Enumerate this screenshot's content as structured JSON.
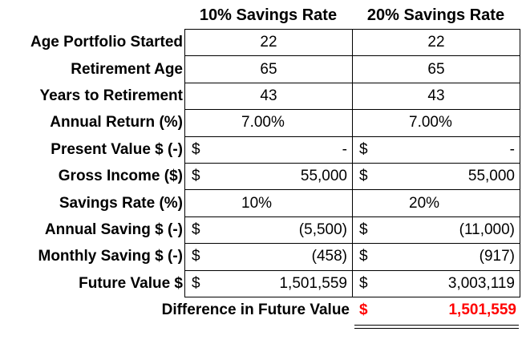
{
  "headers": {
    "col1": "10% Savings Rate",
    "col2": "20% Savings Rate"
  },
  "rows": [
    {
      "label": "Age Portfolio Started",
      "kind": "center",
      "c1": "22",
      "c2": "22"
    },
    {
      "label": "Retirement Age",
      "kind": "center",
      "c1": "65",
      "c2": "65"
    },
    {
      "label": "Years to Retirement",
      "kind": "center",
      "c1": "43",
      "c2": "43"
    },
    {
      "label": "Annual Return (%)",
      "kind": "pct",
      "c1": "7.00%",
      "c2": "7.00%"
    },
    {
      "label": "Present Value $ (-)",
      "kind": "acct",
      "c1_cur": "$",
      "c1": "-",
      "c2_cur": "$",
      "c2": "-"
    },
    {
      "label": "Gross Income ($)",
      "kind": "acct",
      "c1_cur": "$",
      "c1": "55,000",
      "c2_cur": "$",
      "c2": "55,000"
    },
    {
      "label": "Savings Rate (%)",
      "kind": "pct",
      "c1": "10%",
      "c2": "20%"
    },
    {
      "label": "Annual Saving $ (-)",
      "kind": "acct",
      "c1_cur": "$",
      "c1": "(5,500)",
      "c2_cur": "$",
      "c2": "(11,000)"
    },
    {
      "label": "Monthly Saving $ (-)",
      "kind": "acct",
      "c1_cur": "$",
      "c1": "(458)",
      "c2_cur": "$",
      "c2": "(917)"
    },
    {
      "label": "Future Value $",
      "kind": "acct",
      "c1_cur": "$",
      "c1": "1,501,559",
      "c2_cur": "$",
      "c2": "3,003,119"
    }
  ],
  "difference": {
    "label": "Difference in Future Value",
    "currency": "$",
    "value": "1,501,559",
    "color": "#ff0000"
  }
}
